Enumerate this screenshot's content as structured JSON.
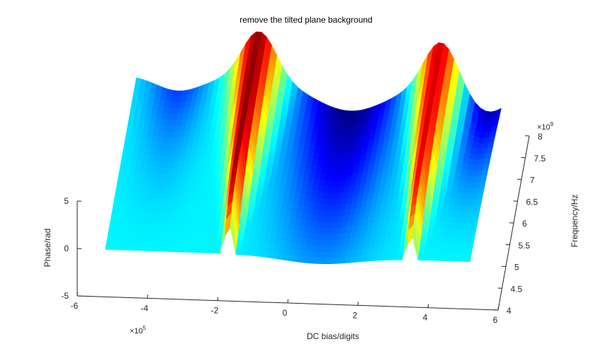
{
  "chart_data": {
    "type": "surface",
    "title": "remove the tilted plane background",
    "xlabel": "DC bias/digits",
    "ylabel": "Frequency/Hz",
    "zlabel": "Phase/rad",
    "x_exponent_label": "×10",
    "x_exponent_power": "5",
    "y_exponent_label": "×10",
    "y_exponent_power": "9",
    "xlim": [
      -600000,
      600000
    ],
    "ylim": [
      4000000000,
      8000000000
    ],
    "zlim": [
      -5,
      5
    ],
    "x_ticks": [
      "-6",
      "-4",
      "-2",
      "0",
      "2",
      "4",
      "6"
    ],
    "y_ticks": [
      "4",
      "4.5",
      "5",
      "5.5",
      "6",
      "6.5",
      "7",
      "7.5",
      "8"
    ],
    "z_ticks": [
      "-5",
      "0",
      "5"
    ],
    "colormap": "jet",
    "grid": false,
    "surface": {
      "x_range": [
        -520000,
        520000
      ],
      "y_range": [
        4000000000,
        8000000000
      ],
      "phase_base": 0,
      "peaks": [
        {
          "x_center": -170000,
          "phase_peak_low_freq": 5.5,
          "phase_peak_high_freq": 5.2
        },
        {
          "x_center": 350000,
          "phase_peak_low_freq": 4.6,
          "phase_peak_high_freq": 5.0
        }
      ],
      "dip_min_phase": -3
    }
  }
}
